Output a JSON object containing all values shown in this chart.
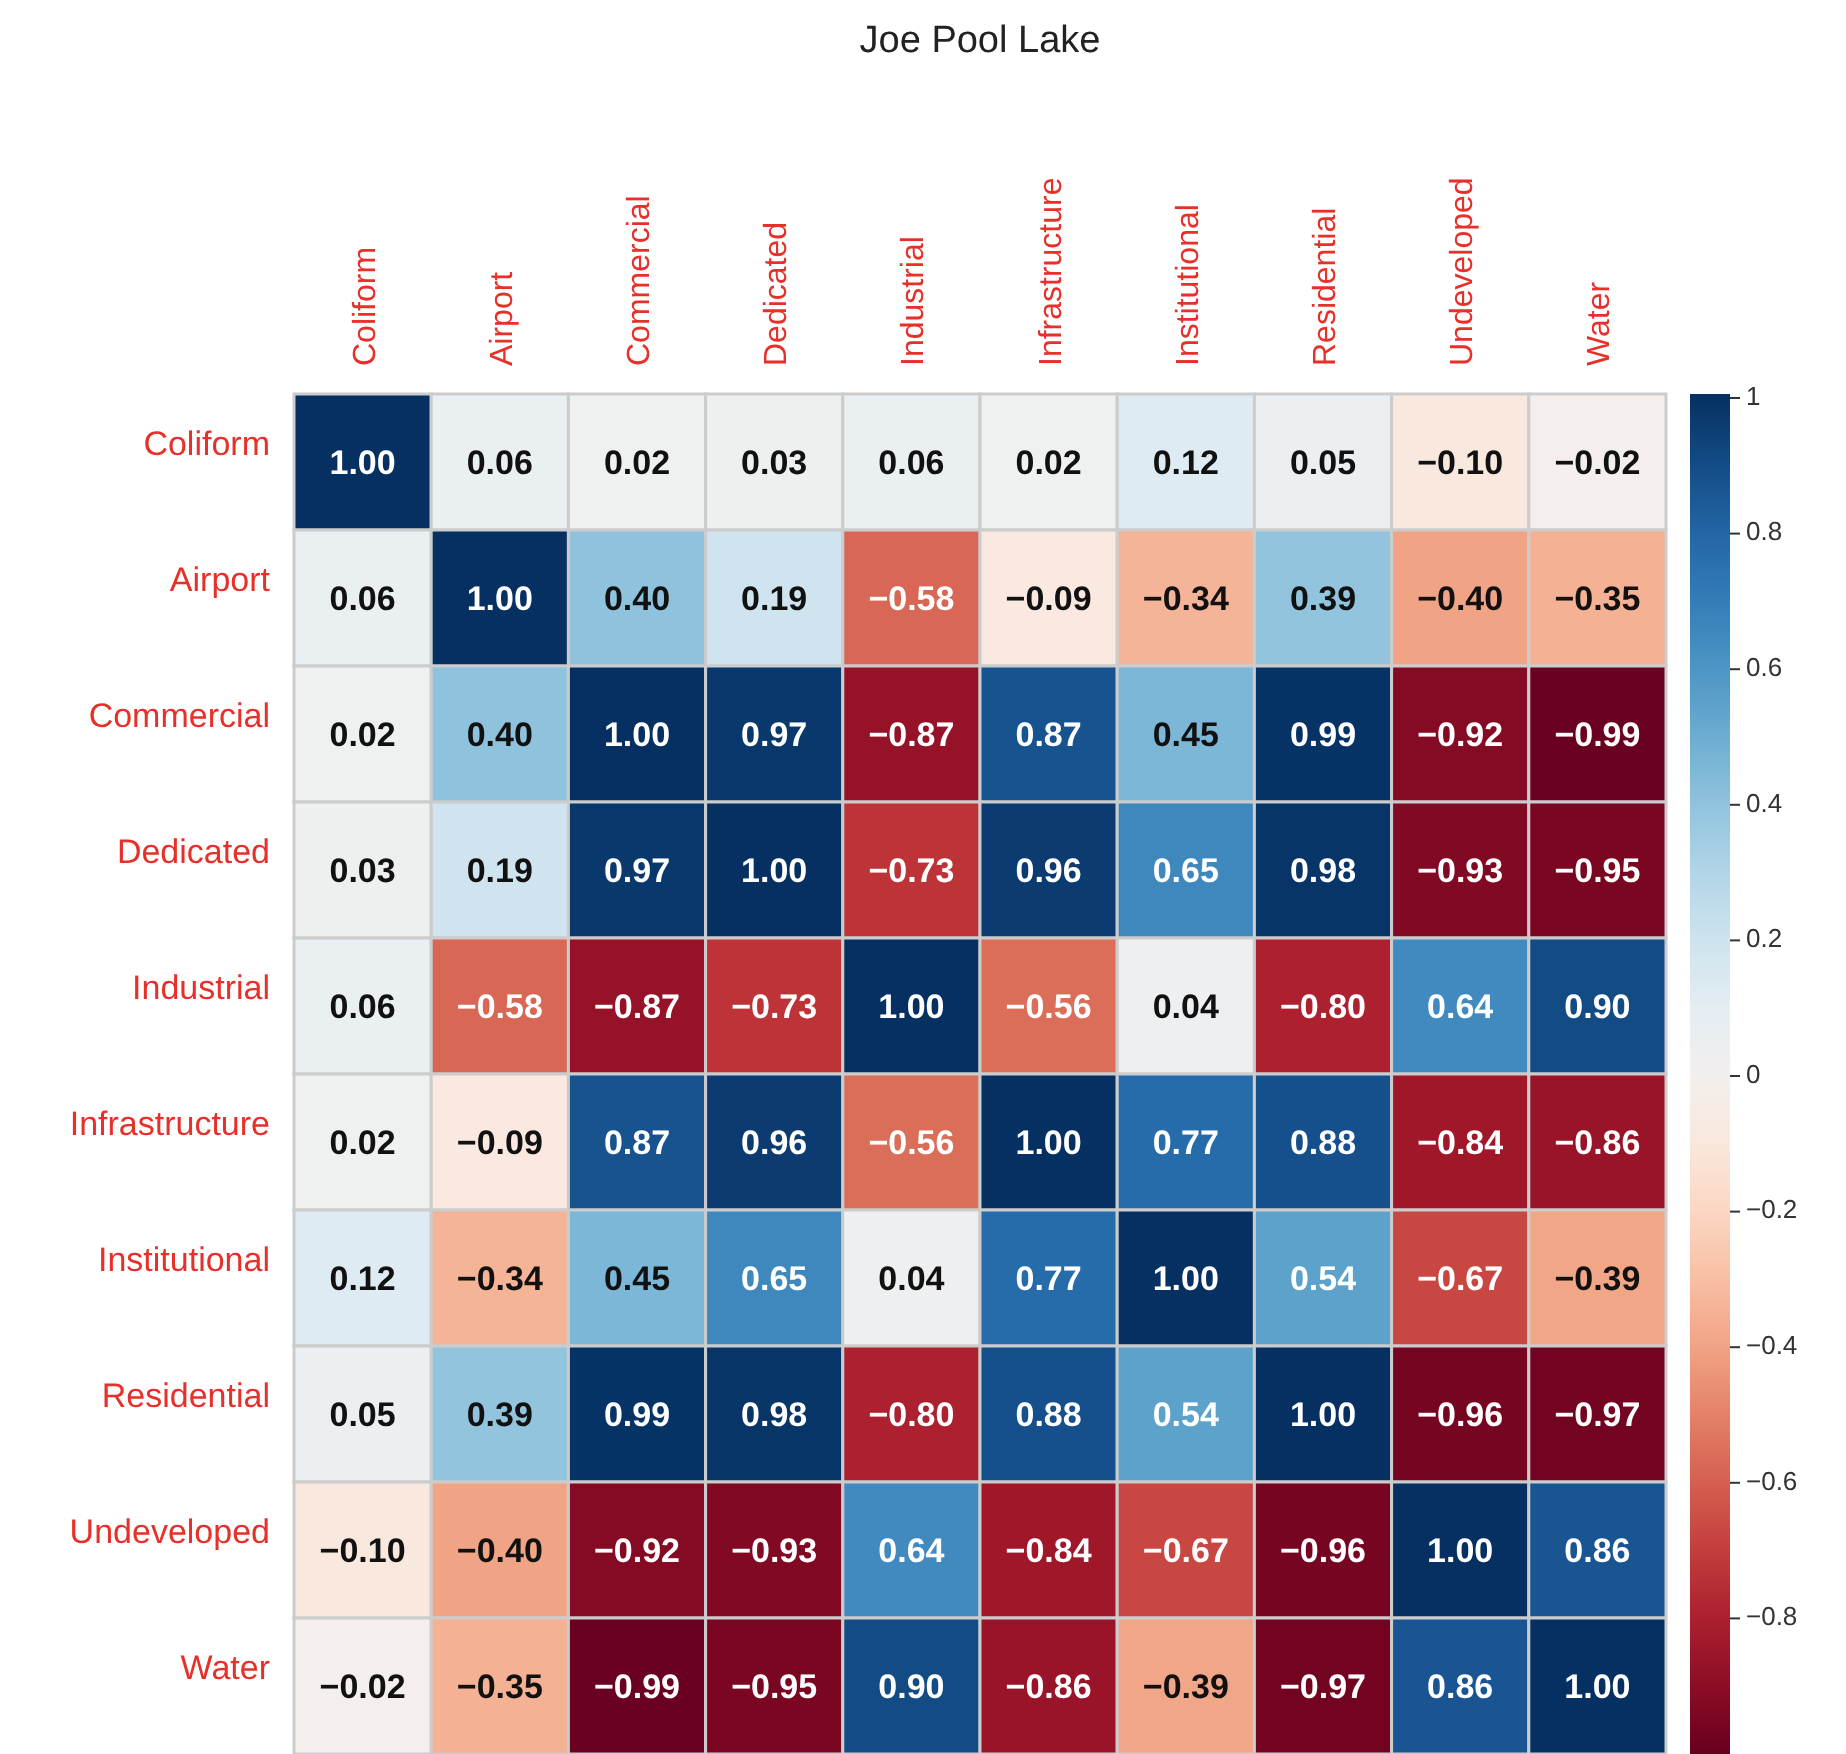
{
  "chart_data": {
    "type": "heatmap",
    "title": "Joe Pool Lake",
    "categories": [
      "Coliform",
      "Airport",
      "Commercial",
      "Dedicated",
      "Industrial",
      "Infrastructure",
      "Institutional",
      "Residential",
      "Undeveloped",
      "Water"
    ],
    "y_categories": [
      "Coliform",
      "Airport",
      "Commercial",
      "Dedicated",
      "Industrial",
      "Infrastructure",
      "Institutional",
      "Residential",
      "Undeveloped",
      "Water"
    ],
    "cells": [
      [
        1.0,
        0.06,
        0.02,
        0.03,
        0.06,
        0.02,
        0.12,
        0.05,
        -0.1,
        -0.02
      ],
      [
        0.06,
        1.0,
        0.4,
        0.19,
        -0.58,
        -0.09,
        -0.34,
        0.39,
        -0.4,
        -0.35
      ],
      [
        0.02,
        0.4,
        1.0,
        0.97,
        -0.87,
        0.87,
        0.45,
        0.99,
        -0.92,
        -0.99
      ],
      [
        0.03,
        0.19,
        0.97,
        1.0,
        -0.73,
        0.96,
        0.65,
        0.98,
        -0.93,
        -0.95
      ],
      [
        0.06,
        -0.58,
        -0.87,
        -0.73,
        1.0,
        -0.56,
        0.04,
        -0.8,
        0.64,
        0.9
      ],
      [
        0.02,
        -0.09,
        0.87,
        0.96,
        -0.56,
        1.0,
        0.77,
        0.88,
        -0.84,
        -0.86
      ],
      [
        0.12,
        -0.34,
        0.45,
        0.65,
        0.04,
        0.77,
        1.0,
        0.54,
        -0.67,
        -0.39
      ],
      [
        0.05,
        0.39,
        0.99,
        0.98,
        -0.8,
        0.88,
        0.54,
        1.0,
        -0.96,
        -0.97
      ],
      [
        -0.1,
        -0.4,
        -0.92,
        -0.93,
        0.64,
        -0.84,
        -0.67,
        -0.96,
        1.0,
        0.86
      ],
      [
        -0.02,
        -0.35,
        -0.99,
        -0.95,
        0.9,
        -0.86,
        -0.39,
        -0.97,
        0.86,
        1.0
      ]
    ],
    "cell_labels": [
      [
        "1.00",
        "0.06",
        "0.02",
        "0.03",
        "0.06",
        "0.02",
        "0.12",
        "0.05",
        "−0.10",
        "−0.02"
      ],
      [
        "0.06",
        "1.00",
        "0.40",
        "0.19",
        "−0.58",
        "−0.09",
        "−0.34",
        "0.39",
        "−0.40",
        "−0.35"
      ],
      [
        "0.02",
        "0.40",
        "1.00",
        "0.97",
        "−0.87",
        "0.87",
        "0.45",
        "0.99",
        "−0.92",
        "−0.99"
      ],
      [
        "0.03",
        "0.19",
        "0.97",
        "1.00",
        "−0.73",
        "0.96",
        "0.65",
        "0.98",
        "−0.93",
        "−0.95"
      ],
      [
        "0.06",
        "−0.58",
        "−0.87",
        "−0.73",
        "1.00",
        "−0.56",
        "0.04",
        "−0.80",
        "0.64",
        "0.90"
      ],
      [
        "0.02",
        "−0.09",
        "0.87",
        "0.96",
        "−0.56",
        "1.00",
        "0.77",
        "0.88",
        "−0.84",
        "−0.86"
      ],
      [
        "0.12",
        "−0.34",
        "0.45",
        "0.65",
        "0.04",
        "0.77",
        "1.00",
        "0.54",
        "−0.67",
        "−0.39"
      ],
      [
        "0.05",
        "0.39",
        "0.99",
        "0.98",
        "−0.80",
        "0.88",
        "0.54",
        "1.00",
        "−0.96",
        "−0.97"
      ],
      [
        "−0.10",
        "−0.40",
        "−0.92",
        "−0.93",
        "0.64",
        "−0.84",
        "−0.67",
        "−0.96",
        "1.00",
        "0.86"
      ],
      [
        "−0.02",
        "−0.35",
        "−0.99",
        "−0.95",
        "0.90",
        "−0.86",
        "−0.39",
        "−0.97",
        "0.86",
        "1.00"
      ]
    ],
    "clim": [
      -1,
      1
    ],
    "cticks": [
      {
        "value": -0.8,
        "label": "−0.8"
      },
      {
        "value": -0.6,
        "label": "−0.6"
      },
      {
        "value": -0.4,
        "label": "−0.4"
      },
      {
        "value": -0.2,
        "label": "−0.2"
      },
      0,
      0.2,
      0.4,
      0.6,
      0.8,
      1
    ]
  }
}
